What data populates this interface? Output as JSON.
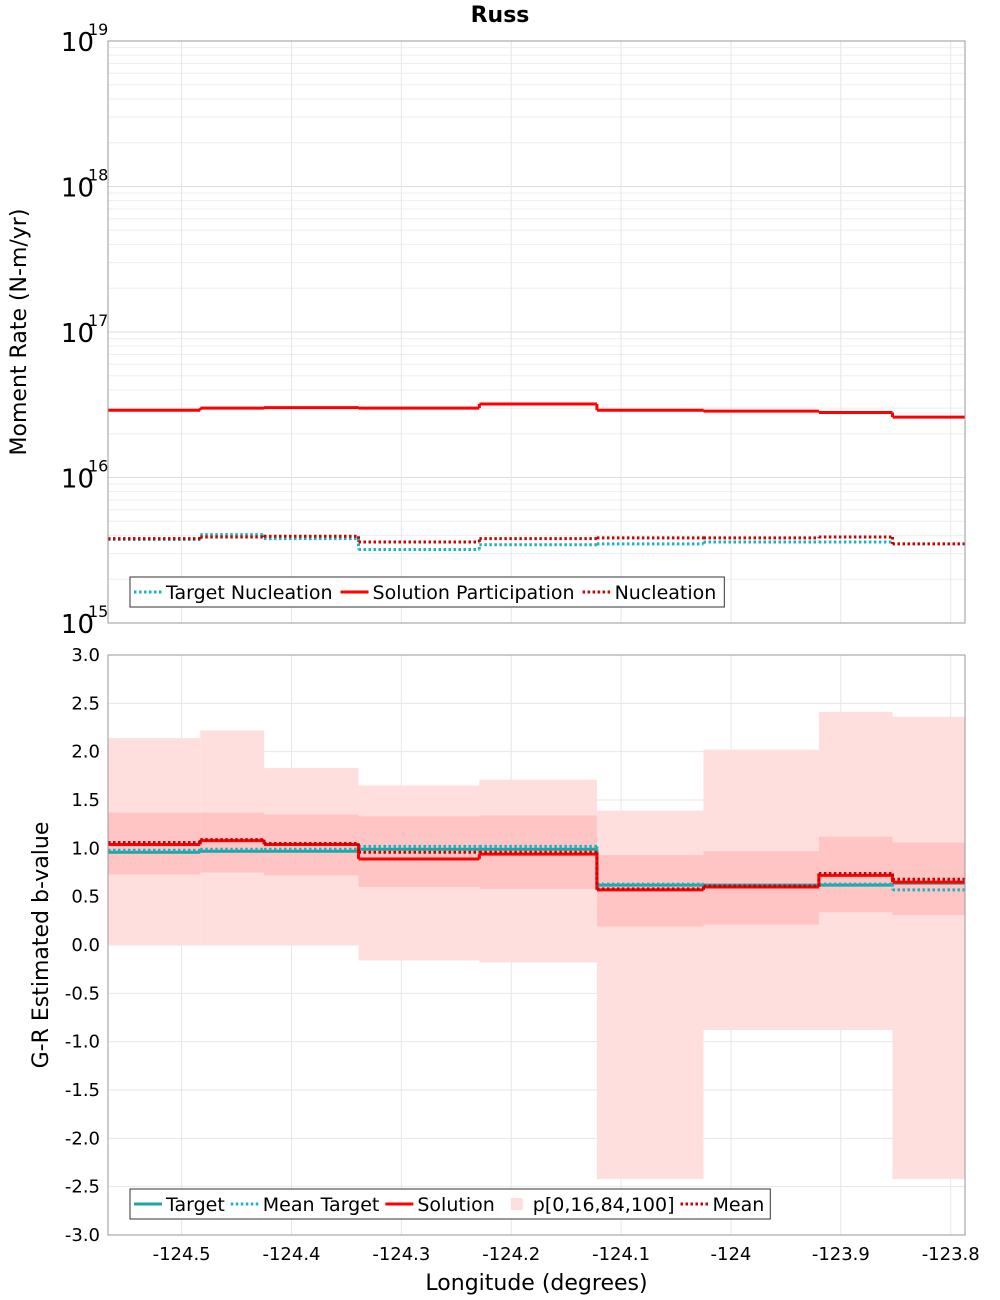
{
  "title": "Russ",
  "chart_data": [
    {
      "type": "line",
      "ylabel": "Moment Rate (N-m/yr)",
      "yscale": "log",
      "ylim": [
        1000000000000000.0,
        1e+19
      ],
      "xlim": [
        -124.567,
        -123.787
      ],
      "y_ticks": [
        {
          "mant": "10",
          "exp": "15"
        },
        {
          "mant": "10",
          "exp": "16"
        },
        {
          "mant": "10",
          "exp": "17"
        },
        {
          "mant": "10",
          "exp": "18"
        },
        {
          "mant": "10",
          "exp": "19"
        }
      ],
      "grid": true,
      "legend_position": "bottom-left",
      "bin_edges": [
        -124.567,
        -124.483,
        -124.425,
        -124.339,
        -124.229,
        -124.122,
        -124.025,
        -123.92,
        -123.853,
        -123.787
      ],
      "series": [
        {
          "name": "Target Nucleation",
          "style": "dotted",
          "color": "#17b5c4",
          "values": [
            3750000000000000.0,
            4050000000000000.0,
            3800000000000000.0,
            3200000000000000.0,
            3450000000000000.0,
            3500000000000000.0,
            3600000000000000.0,
            3600000000000000.0,
            null
          ]
        },
        {
          "name": "Solution Participation",
          "style": "solid",
          "color": "#ff0000",
          "values": [
            2.9e+16,
            3e+16,
            3.02e+16,
            3e+16,
            3.2e+16,
            2.9e+16,
            2.86e+16,
            2.8e+16,
            2.6e+16
          ]
        },
        {
          "name": "Nucleation",
          "style": "dotted",
          "color": "#cc0000",
          "values": [
            3800000000000000.0,
            3900000000000000.0,
            3950000000000000.0,
            3600000000000000.0,
            3800000000000000.0,
            3850000000000000.0,
            3850000000000000.0,
            3900000000000000.0,
            3500000000000000.0
          ]
        }
      ]
    },
    {
      "type": "line",
      "xlabel": "Longitude (degrees)",
      "ylabel": "G-R Estimated b-value",
      "ylim": [
        -3.0,
        3.0
      ],
      "xlim": [
        -124.567,
        -123.787
      ],
      "y_ticks": [
        "3.0",
        "2.5",
        "2.0",
        "1.5",
        "1.0",
        "0.5",
        "0.0",
        "-0.5",
        "-1.0",
        "-1.5",
        "-2.0",
        "-2.5",
        "-3.0"
      ],
      "x_ticks": [
        "-124.5",
        "-124.4",
        "-124.3",
        "-124.2",
        "-124.1",
        "-124",
        "-123.9",
        "-123.8"
      ],
      "grid": true,
      "legend_position": "bottom-left",
      "bin_edges": [
        -124.567,
        -124.483,
        -124.425,
        -124.339,
        -124.229,
        -124.122,
        -124.025,
        -123.92,
        -123.853,
        -123.787
      ],
      "band_outer": {
        "name": "p[0,16,84,100]",
        "color": "#ffdede",
        "low": [
          0.0,
          0.0,
          0.0,
          -0.16,
          -0.18,
          -2.42,
          -0.88,
          -0.88,
          -2.42
        ],
        "high": [
          2.14,
          2.22,
          1.83,
          1.65,
          1.71,
          1.39,
          2.02,
          2.41,
          2.36
        ]
      },
      "band_inner": {
        "color": "#ffc4c4",
        "low": [
          0.73,
          0.75,
          0.72,
          0.6,
          0.58,
          0.19,
          0.21,
          0.34,
          0.31
        ],
        "high": [
          1.37,
          1.37,
          1.35,
          1.33,
          1.34,
          0.93,
          0.97,
          1.12,
          1.06
        ]
      },
      "series": [
        {
          "name": "Target",
          "style": "solid",
          "color": "#1aa7a5",
          "values": [
            0.96,
            0.97,
            0.97,
            0.99,
            0.99,
            0.62,
            0.62,
            0.62,
            0.64
          ]
        },
        {
          "name": "Mean Target",
          "style": "dotted",
          "color": "#17b5c4",
          "values": [
            0.98,
            0.99,
            0.99,
            1.02,
            1.02,
            0.63,
            0.62,
            0.63,
            0.57
          ]
        },
        {
          "name": "Solution",
          "style": "solid",
          "color": "#ff0000",
          "values": [
            1.04,
            1.08,
            1.04,
            0.89,
            0.94,
            0.57,
            0.6,
            0.72,
            0.65
          ]
        },
        {
          "name": "Mean",
          "style": "dotted",
          "color": "#cc0000",
          "values": [
            1.06,
            1.09,
            1.05,
            0.96,
            0.96,
            0.58,
            0.61,
            0.74,
            0.68
          ]
        }
      ],
      "legend_order": [
        "Target",
        "Mean Target",
        "Solution",
        "p[0,16,84,100]",
        "Mean"
      ]
    }
  ]
}
